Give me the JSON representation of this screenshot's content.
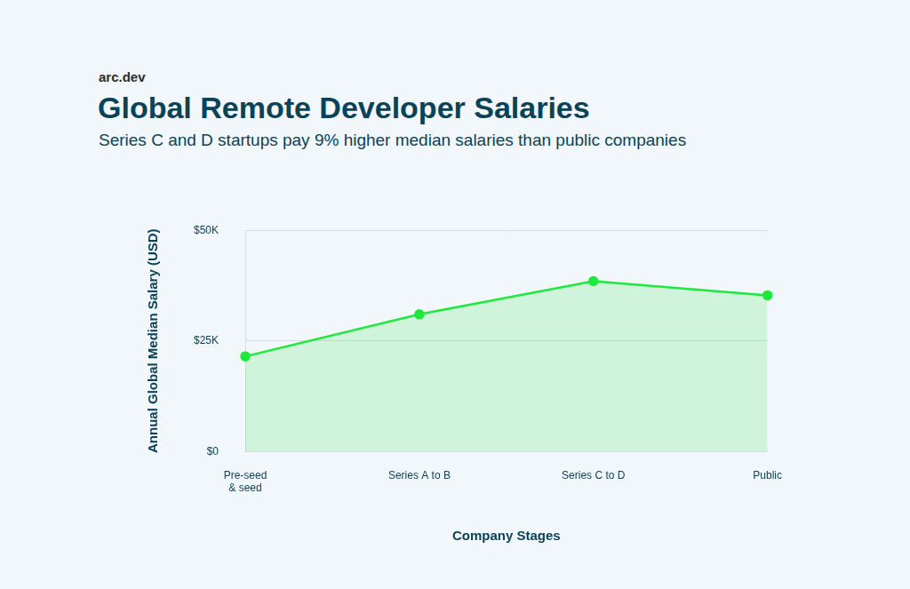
{
  "chart_data": {
    "type": "area",
    "brand": "arc.dev",
    "title": "Global Remote Developer Salaries",
    "subtitle": "Series C and D startups pay 9% higher median salaries than public companies",
    "x_label": "Company Stages",
    "y_label": "Annual Global Median Salary (USD)",
    "categories": [
      [
        "Pre-seed",
        "& seed"
      ],
      "Series A to B",
      "Series C to D",
      "Public"
    ],
    "values": [
      21500,
      31000,
      38500,
      35300
    ],
    "color": "#1ee83a",
    "marker": "circle",
    "ylim": [
      0,
      50000
    ],
    "yticks": [
      {
        "value": 0,
        "label": "$0"
      },
      {
        "value": 25000,
        "label": "$25K"
      },
      {
        "value": 50000,
        "label": "$50K"
      }
    ],
    "grid": true
  }
}
